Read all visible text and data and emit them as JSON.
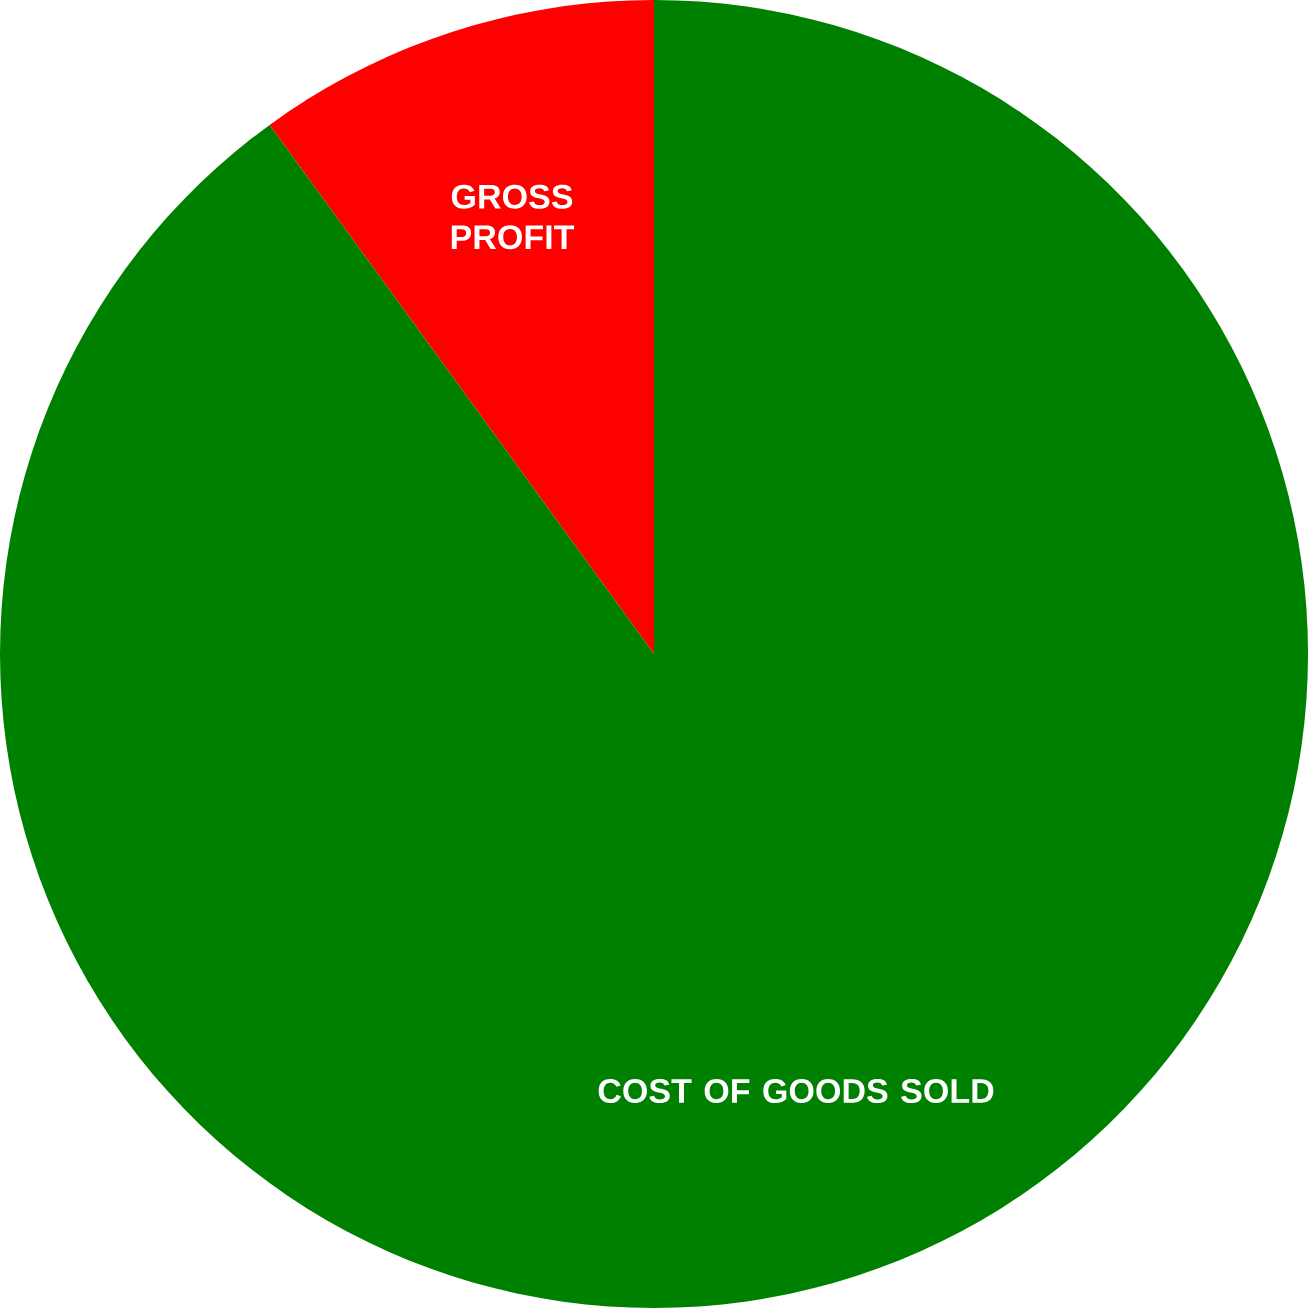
{
  "chart_data": {
    "type": "pie",
    "categories": [
      "GROSS PROFIT",
      "COST OF GOODS SOLD"
    ],
    "values": [
      10,
      90
    ],
    "colors": [
      "#ff0000",
      "#008000"
    ]
  }
}
